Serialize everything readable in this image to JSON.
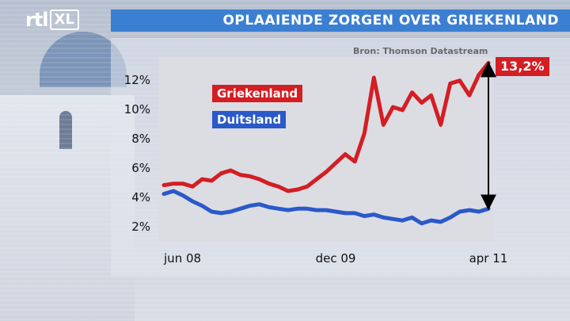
{
  "branding": {
    "logo_main": "rtl",
    "logo_box": "XL"
  },
  "header": {
    "title": "OPLAAIENDE ZORGEN OVER GRIEKENLAND"
  },
  "source": "Bron: Thomson Datastream",
  "colors": {
    "greece": "#d31e24",
    "germany": "#2a59c9",
    "title_bar": "#3b7fd2"
  },
  "chart_data": {
    "type": "line",
    "title": "OPLAAIENDE ZORGEN OVER GRIEKENLAND",
    "xlabel": "",
    "ylabel": "",
    "x_tick_labels": [
      "jun 08",
      "dec 09",
      "apr 11"
    ],
    "x_tick_positions": [
      0,
      18,
      34
    ],
    "y_ticks": [
      {
        "value": 2,
        "label": "2%"
      },
      {
        "value": 4,
        "label": "4%"
      },
      {
        "value": 6,
        "label": "6%"
      },
      {
        "value": 8,
        "label": "8%"
      },
      {
        "value": 10,
        "label": "10%"
      },
      {
        "value": 12,
        "label": "12%"
      }
    ],
    "xlim": [
      -0.5,
      34.5
    ],
    "ylim": [
      1.0,
      13.6
    ],
    "grid": false,
    "legend": "top-left",
    "series": [
      {
        "name": "Griekenland",
        "color": "#d31e24",
        "points": [
          [
            0,
            4.9
          ],
          [
            1,
            5.0
          ],
          [
            2,
            5.0
          ],
          [
            3,
            4.8
          ],
          [
            4,
            5.3
          ],
          [
            5,
            5.2
          ],
          [
            6,
            5.7
          ],
          [
            7,
            5.9
          ],
          [
            8,
            5.6
          ],
          [
            9,
            5.5
          ],
          [
            10,
            5.3
          ],
          [
            11,
            5.0
          ],
          [
            12,
            4.8
          ],
          [
            13,
            4.5
          ],
          [
            14,
            4.6
          ],
          [
            15,
            4.8
          ],
          [
            16,
            5.3
          ],
          [
            17,
            5.8
          ],
          [
            18,
            6.4
          ],
          [
            19,
            7.0
          ],
          [
            20,
            6.5
          ],
          [
            21,
            8.4
          ],
          [
            22,
            12.2
          ],
          [
            23,
            9.0
          ],
          [
            24,
            10.2
          ],
          [
            25,
            10.0
          ],
          [
            26,
            11.2
          ],
          [
            27,
            10.5
          ],
          [
            28,
            11.0
          ],
          [
            29,
            9.0
          ],
          [
            30,
            11.8
          ],
          [
            31,
            12.0
          ],
          [
            32,
            11.0
          ],
          [
            33,
            12.4
          ],
          [
            34,
            13.2
          ]
        ]
      },
      {
        "name": "Duitsland",
        "color": "#2a59c9",
        "points": [
          [
            0,
            4.3
          ],
          [
            1,
            4.5
          ],
          [
            2,
            4.2
          ],
          [
            3,
            3.8
          ],
          [
            4,
            3.5
          ],
          [
            5,
            3.1
          ],
          [
            6,
            3.0
          ],
          [
            7,
            3.1
          ],
          [
            8,
            3.3
          ],
          [
            9,
            3.5
          ],
          [
            10,
            3.6
          ],
          [
            11,
            3.4
          ],
          [
            12,
            3.3
          ],
          [
            13,
            3.2
          ],
          [
            14,
            3.3
          ],
          [
            15,
            3.3
          ],
          [
            16,
            3.2
          ],
          [
            17,
            3.2
          ],
          [
            18,
            3.1
          ],
          [
            19,
            3.0
          ],
          [
            20,
            3.0
          ],
          [
            21,
            2.8
          ],
          [
            22,
            2.9
          ],
          [
            23,
            2.7
          ],
          [
            24,
            2.6
          ],
          [
            25,
            2.5
          ],
          [
            26,
            2.7
          ],
          [
            27,
            2.3
          ],
          [
            28,
            2.5
          ],
          [
            29,
            2.4
          ],
          [
            30,
            2.7
          ],
          [
            31,
            3.1
          ],
          [
            32,
            3.2
          ],
          [
            33,
            3.1
          ],
          [
            34,
            3.3
          ]
        ]
      }
    ],
    "annotations": [
      {
        "type": "double-arrow",
        "x": 34,
        "y_from": 3.3,
        "y_to": 13.2
      },
      {
        "type": "label",
        "text": "13,2%",
        "x": 34,
        "y": 13.2
      }
    ]
  }
}
